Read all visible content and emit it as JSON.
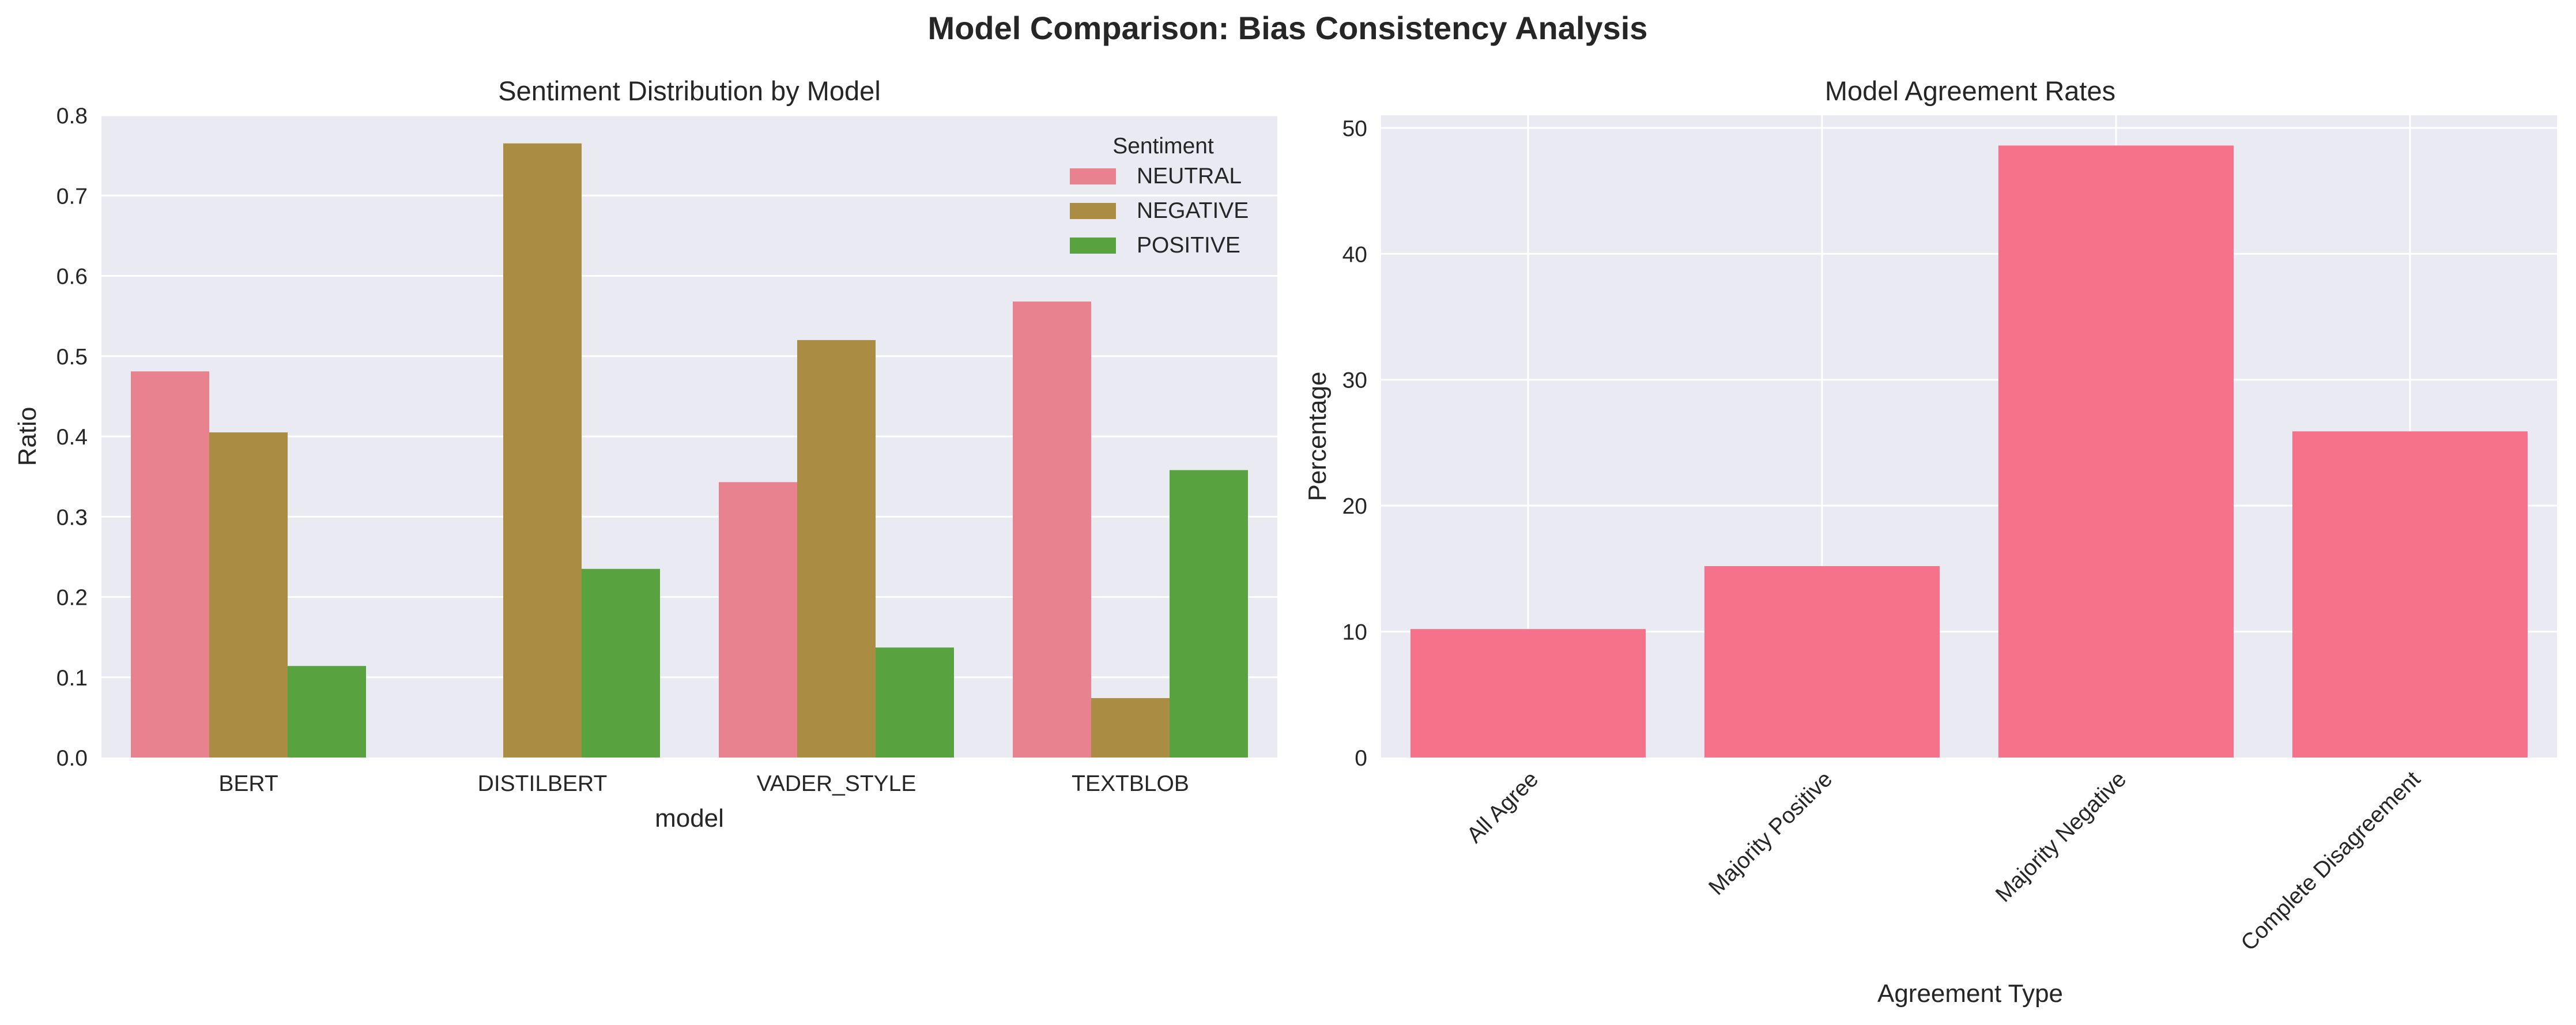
{
  "figure": {
    "title": "Model Comparison: Bias Consistency Analysis"
  },
  "chart_data": [
    {
      "type": "bar",
      "title": "Sentiment Distribution by Model",
      "xlabel": "model",
      "ylabel": "Ratio",
      "categories": [
        "BERT",
        "DISTILBERT",
        "VADER_STYLE",
        "TEXTBLOB"
      ],
      "series": [
        {
          "name": "NEUTRAL",
          "color": "#E8828F",
          "values": [
            0.481,
            0.0,
            0.343,
            0.568
          ]
        },
        {
          "name": "NEGATIVE",
          "color": "#AA8C42",
          "values": [
            0.405,
            0.765,
            0.52,
            0.074
          ]
        },
        {
          "name": "POSITIVE",
          "color": "#58A23F",
          "values": [
            0.114,
            0.235,
            0.137,
            0.358
          ]
        }
      ],
      "ylim": [
        0,
        0.8
      ],
      "yticks": [
        "0.0",
        "0.1",
        "0.2",
        "0.3",
        "0.4",
        "0.5",
        "0.6",
        "0.7",
        "0.8"
      ],
      "grid": true,
      "legend": {
        "title": "Sentiment",
        "placement": "top-right"
      }
    },
    {
      "type": "bar",
      "title": "Model Agreement Rates",
      "xlabel": "Agreement Type",
      "ylabel": "Percentage",
      "categories": [
        "All Agree",
        "Majority Positive",
        "Majority Negative",
        "Complete Disagreement"
      ],
      "values": [
        10.2,
        15.2,
        48.6,
        25.9
      ],
      "color": "#F6718A",
      "ylim": [
        0,
        51
      ],
      "yticks": [
        "0",
        "10",
        "20",
        "30",
        "40",
        "50"
      ],
      "grid": true
    }
  ]
}
